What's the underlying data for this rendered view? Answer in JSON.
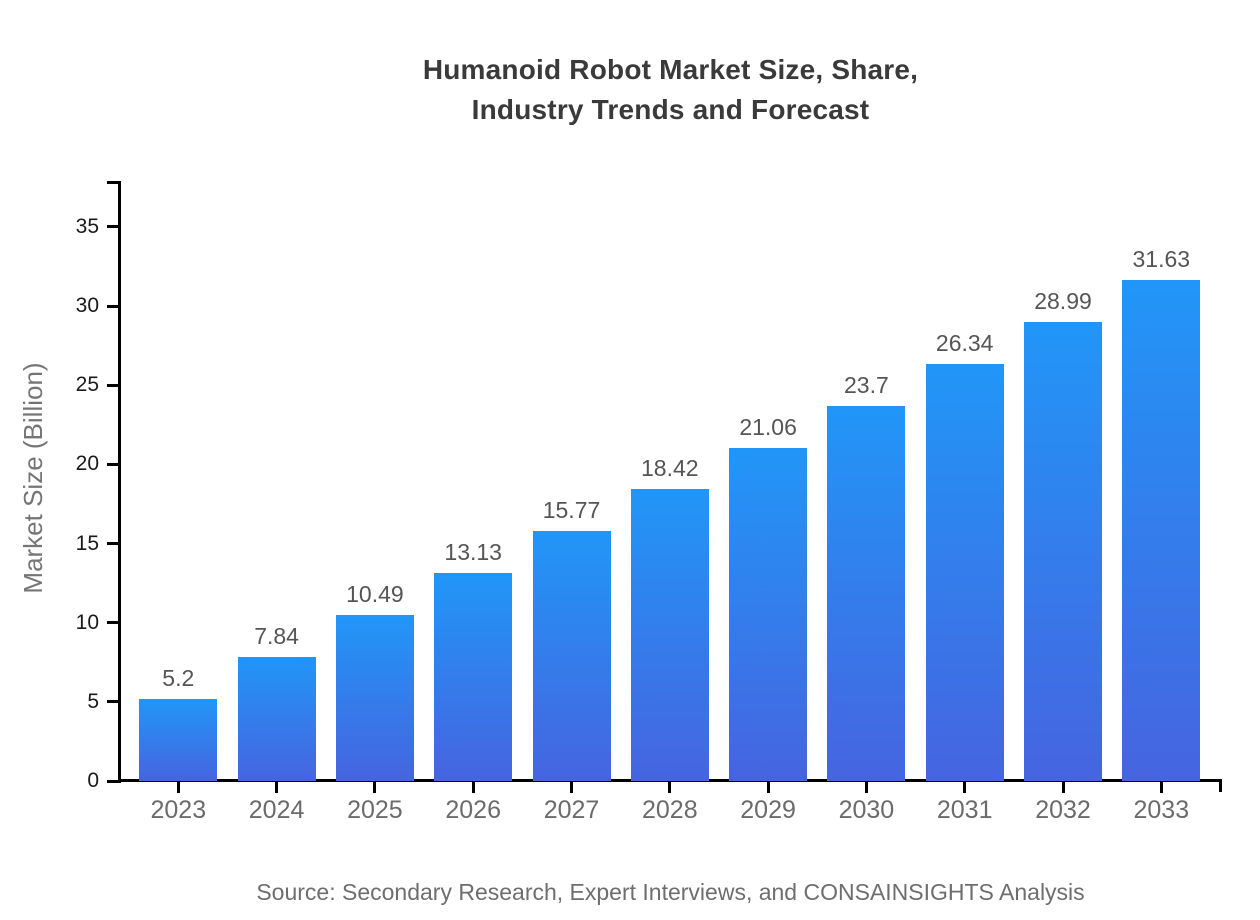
{
  "chart_data": {
    "type": "bar",
    "title_line1": "Humanoid Robot Market Size, Share,",
    "title_line2": "Industry Trends and Forecast",
    "ylabel": "Market Size (Billion)",
    "source": "Source: Secondary Research, Expert Interviews, and CONSAINSIGHTS Analysis",
    "categories": [
      "2023",
      "2024",
      "2025",
      "2026",
      "2027",
      "2028",
      "2029",
      "2030",
      "2031",
      "2032",
      "2033"
    ],
    "values": [
      5.2,
      7.84,
      10.49,
      13.13,
      15.77,
      18.42,
      21.06,
      23.7,
      26.34,
      28.99,
      31.63
    ],
    "value_labels": [
      "5.2",
      "7.84",
      "10.49",
      "13.13",
      "15.77",
      "18.42",
      "21.06",
      "23.7",
      "26.34",
      "28.99",
      "31.63"
    ],
    "yticks": [
      0,
      5,
      10,
      15,
      20,
      25,
      30,
      35
    ],
    "ylim": [
      0,
      37.9
    ],
    "grid": false,
    "legend_position": "none",
    "colors": {
      "bar_gradient_top": "#2196F8",
      "bar_gradient_bottom": "#4664E0",
      "axis": "#000000",
      "title": "#3A3A3A",
      "ytick_label": "#1A1A1A",
      "category_label": "#6B6B6B",
      "value_label": "#555555",
      "axis_title": "#757575",
      "source_text": "#6E6E6E"
    }
  }
}
